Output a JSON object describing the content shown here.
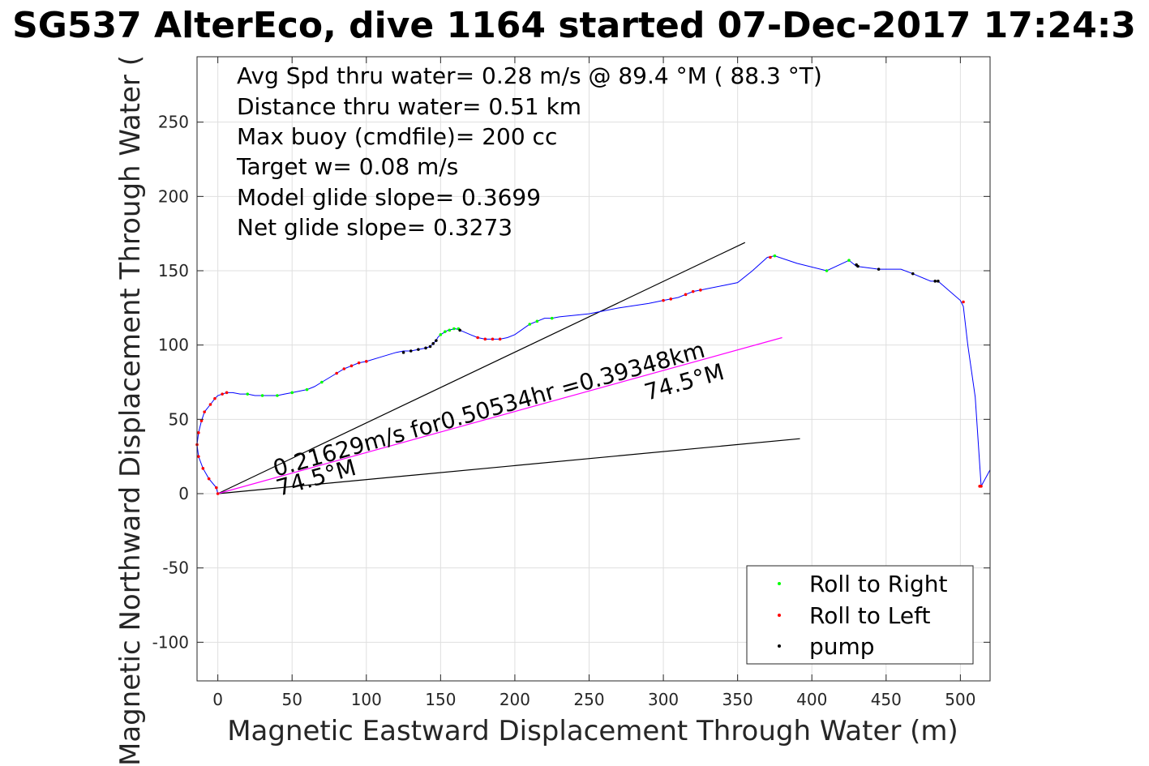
{
  "chart_data": {
    "type": "line",
    "title": "SG537 AlterEco, dive 1164 started 07-Dec-2017 17:24:3",
    "xlabel": "Magnetic Eastward Displacement Through Water (m)",
    "ylabel": "Magnetic Northward Displacement Through Water (",
    "xlim": [
      -14,
      520
    ],
    "ylim": [
      -126,
      294
    ],
    "xticks": [
      0,
      50,
      100,
      150,
      200,
      250,
      300,
      350,
      400,
      450,
      500
    ],
    "yticks": [
      -100,
      -50,
      0,
      50,
      100,
      150,
      200,
      250
    ],
    "grid": true,
    "legend_position": "bottom-right",
    "annotations": [
      "Avg Spd thru water=  0.28 m/s @  89.4 °M ( 88.3 °T)",
      "Distance thru water=  0.51 km",
      "Max buoy (cmdfile)= 200 cc",
      "Target w= 0.08 m/s",
      "Model glide slope= 0.3699",
      "Net glide slope= 0.3273"
    ],
    "current_label": "0.21629m/s for0.50534hr =0.39348km",
    "heading_label_1": "74.5°M",
    "heading_label_2": "74.5°M",
    "series": [
      {
        "name": "track",
        "color": "#0000ff",
        "x": [
          0,
          -1,
          -6,
          -10,
          -13,
          -14,
          -13,
          -11,
          -9,
          -5,
          -2,
          0,
          3,
          6,
          10,
          15,
          20,
          25,
          30,
          35,
          40,
          45,
          50,
          55,
          60,
          65,
          70,
          75,
          80,
          85,
          90,
          95,
          100,
          110,
          120,
          125,
          130,
          135,
          140,
          143,
          145,
          147,
          148,
          150,
          155,
          160,
          163,
          170,
          175,
          180,
          185,
          190,
          195,
          200,
          210,
          215,
          220,
          225,
          230,
          250,
          270,
          290,
          300,
          305,
          310,
          315,
          320,
          325,
          330,
          340,
          350,
          360,
          370,
          375,
          390,
          410,
          425,
          430,
          445,
          460,
          468,
          480,
          485,
          500,
          502,
          505,
          510,
          514,
          520
        ],
        "y": [
          0,
          4,
          10,
          17,
          25,
          33,
          41,
          49,
          55,
          60,
          64,
          66,
          67,
          68,
          68,
          67,
          67,
          66,
          66,
          66,
          66,
          67,
          68,
          69,
          70,
          72,
          75,
          78,
          81,
          84,
          86,
          88,
          89,
          92,
          95,
          96,
          96,
          97,
          98,
          99,
          101,
          103,
          105,
          107,
          110,
          111,
          110,
          107,
          105,
          104,
          104,
          104,
          105,
          107,
          114,
          116,
          118,
          118,
          119,
          121,
          125,
          128,
          130,
          131,
          132,
          134,
          136,
          137,
          138,
          140,
          142,
          150,
          159,
          160,
          155,
          150,
          157,
          153,
          151,
          151,
          148,
          143,
          143,
          130,
          126,
          100,
          65,
          5,
          16
        ]
      },
      {
        "name": "Roll to Right",
        "color": "#00ff00",
        "x": [
          20,
          30,
          40,
          50,
          60,
          70,
          150,
          153,
          156,
          159,
          162,
          210,
          215,
          225,
          375,
          410,
          425
        ],
        "y": [
          67,
          66,
          66,
          68,
          70,
          75,
          107,
          109,
          110,
          111,
          111,
          114,
          116,
          118,
          160,
          150,
          157
        ]
      },
      {
        "name": "Roll to Left",
        "color": "#ff0000",
        "x": [
          0,
          -1,
          -6,
          -10,
          -13,
          -14,
          -13,
          -11,
          -9,
          -5,
          -2,
          3,
          6,
          80,
          85,
          90,
          95,
          100,
          175,
          180,
          185,
          190,
          300,
          305,
          315,
          320,
          325,
          372,
          502,
          513,
          514
        ],
        "y": [
          0,
          4,
          10,
          17,
          25,
          33,
          41,
          49,
          55,
          60,
          64,
          67,
          68,
          81,
          84,
          86,
          88,
          89,
          105,
          104,
          104,
          104,
          130,
          131,
          134,
          136,
          137,
          159,
          129,
          5,
          5
        ]
      },
      {
        "name": "pump",
        "color": "#000000",
        "x": [
          125,
          130,
          135,
          140,
          143,
          145,
          147,
          163,
          430,
          431,
          445,
          468,
          483,
          485
        ],
        "y": [
          95,
          96,
          97,
          98,
          99,
          101,
          103,
          110,
          154,
          153,
          151,
          148,
          143,
          143
        ]
      }
    ],
    "lines": [
      {
        "name": "model-glide-line",
        "color": "#000000",
        "x": [
          0,
          355
        ],
        "y": [
          0,
          169
        ]
      },
      {
        "name": "net-glide-line",
        "color": "#000000",
        "x": [
          0,
          392
        ],
        "y": [
          0,
          37
        ]
      },
      {
        "name": "current-vector-line",
        "color": "#ff00ff",
        "x": [
          0,
          380
        ],
        "y": [
          0,
          105
        ]
      }
    ],
    "legend": [
      {
        "label": "Roll to Right",
        "color": "#00ff00"
      },
      {
        "label": "Roll to Left",
        "color": "#ff0000"
      },
      {
        "label": "pump",
        "color": "#000000"
      }
    ]
  }
}
